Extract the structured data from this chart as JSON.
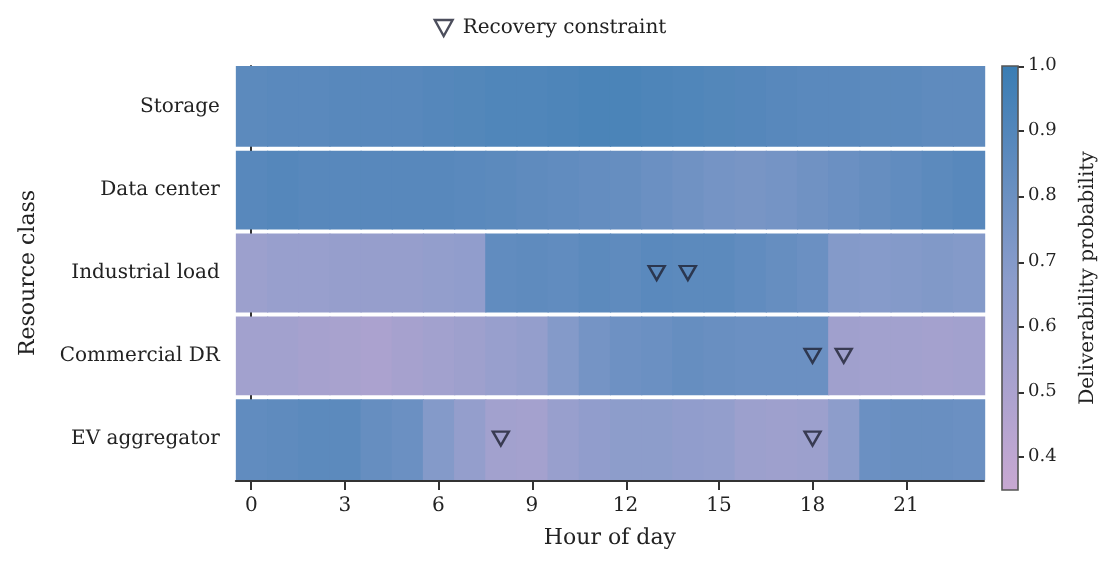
{
  "chart_data": {
    "type": "heatmap",
    "xlabel": "Hour of day",
    "ylabel": "Resource class",
    "clabel": "Deliverability probability",
    "x": [
      0,
      1,
      2,
      3,
      4,
      5,
      6,
      7,
      8,
      9,
      10,
      11,
      12,
      13,
      14,
      15,
      16,
      17,
      18,
      19,
      20,
      21,
      22,
      23
    ],
    "xlim": [
      -0.5,
      23.5
    ],
    "xticks": [
      0,
      3,
      6,
      9,
      12,
      15,
      18,
      21
    ],
    "y_categories": [
      "Storage",
      "Data center",
      "Industrial load",
      "Commercial DR",
      "EV aggregator"
    ],
    "cells": [
      [
        0.86,
        0.87,
        0.87,
        0.88,
        0.88,
        0.88,
        0.89,
        0.9,
        0.91,
        0.91,
        0.92,
        0.93,
        0.93,
        0.92,
        0.91,
        0.9,
        0.89,
        0.88,
        0.87,
        0.87,
        0.86,
        0.86,
        0.85,
        0.85
      ],
      [
        0.88,
        0.89,
        0.88,
        0.88,
        0.88,
        0.88,
        0.88,
        0.87,
        0.86,
        0.85,
        0.84,
        0.83,
        0.82,
        0.8,
        0.78,
        0.76,
        0.75,
        0.76,
        0.78,
        0.8,
        0.82,
        0.84,
        0.86,
        0.88
      ],
      [
        0.58,
        0.6,
        0.6,
        0.61,
        0.61,
        0.61,
        0.63,
        0.64,
        0.84,
        0.85,
        0.84,
        0.86,
        0.85,
        0.87,
        0.86,
        0.86,
        0.84,
        0.82,
        0.8,
        0.7,
        0.69,
        0.7,
        0.71,
        0.7
      ],
      [
        0.55,
        0.55,
        0.53,
        0.52,
        0.5,
        0.53,
        0.55,
        0.57,
        0.6,
        0.62,
        0.7,
        0.76,
        0.79,
        0.8,
        0.82,
        0.81,
        0.8,
        0.8,
        0.8,
        0.56,
        0.55,
        0.55,
        0.54,
        0.55
      ],
      [
        0.84,
        0.85,
        0.86,
        0.86,
        0.82,
        0.8,
        0.7,
        0.62,
        0.55,
        0.54,
        0.6,
        0.64,
        0.66,
        0.66,
        0.64,
        0.63,
        0.58,
        0.57,
        0.58,
        0.66,
        0.8,
        0.81,
        0.81,
        0.8
      ]
    ],
    "clim": [
      0.35,
      1.0
    ],
    "cticks": [
      0.4,
      0.5,
      0.6,
      0.7,
      0.8,
      0.9,
      {
        "value": 1,
        "label": "1.0"
      }
    ],
    "series": [
      {
        "type": "scatter",
        "name": "Recovery constraint",
        "color": "#1f2233",
        "marker": "triangle",
        "x": [
          13,
          14,
          18,
          19,
          8,
          18
        ],
        "values": [
          2,
          2,
          3,
          3,
          4,
          4
        ]
      }
    ],
    "legend": "top",
    "grid": false
  }
}
